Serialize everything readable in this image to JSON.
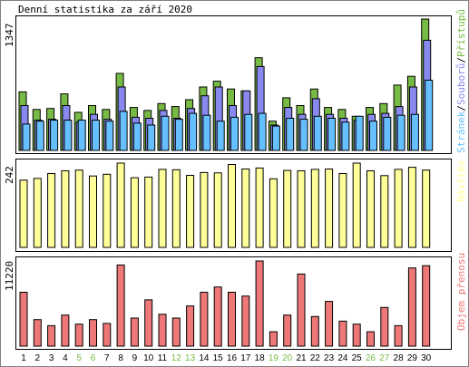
{
  "title": "Denní statistika za září 2020",
  "colors": {
    "frame": "#000000",
    "outer_frame": "#808080",
    "hits_bar": "#77bb44",
    "files_bar": "#8888ee",
    "pages_bar": "#66c0ff",
    "visits_bar": "#ffff99",
    "kbytes_bar": "#ee7777",
    "weekday_label": "#000000",
    "weekend_label": "#77bb44",
    "label_hits": "#77bb44",
    "label_files": "#8888ee",
    "label_pages": "#66c0ff",
    "label_visits": "#ffff99",
    "label_kbytes": "#ee7777",
    "separator": "#000000"
  },
  "chart_data": [
    {
      "type": "bar",
      "panel": "hits",
      "ymax_label": "1347",
      "ylim": [
        0,
        1347
      ],
      "legend": {
        "pages": "Stránek",
        "separator": "/",
        "files": "Souborů",
        "hits": "Přístupů"
      },
      "series": [
        {
          "name": "Přístupů",
          "values": [
            600,
            420,
            430,
            580,
            390,
            460,
            420,
            790,
            440,
            410,
            480,
            450,
            520,
            650,
            710,
            630,
            610,
            950,
            300,
            540,
            460,
            630,
            440,
            420,
            350,
            440,
            480,
            670,
            760,
            1347
          ]
        },
        {
          "name": "Souborů",
          "values": [
            460,
            310,
            320,
            460,
            290,
            370,
            320,
            650,
            340,
            330,
            410,
            330,
            430,
            560,
            650,
            460,
            610,
            860,
            260,
            440,
            370,
            530,
            370,
            330,
            310,
            370,
            380,
            450,
            650,
            1130
          ]
        },
        {
          "name": "Stránek",
          "values": [
            270,
            300,
            310,
            310,
            310,
            310,
            300,
            400,
            280,
            260,
            350,
            320,
            380,
            360,
            300,
            340,
            370,
            380,
            250,
            330,
            320,
            350,
            330,
            290,
            350,
            300,
            340,
            360,
            370,
            720
          ]
        }
      ]
    },
    {
      "type": "bar",
      "panel": "visits",
      "ymax_label": "242",
      "ylim": [
        0,
        242
      ],
      "label": "Návštěv",
      "series": [
        {
          "name": "Návštěv",
          "values": [
            193,
            198,
            212,
            220,
            222,
            205,
            210,
            242,
            200,
            202,
            224,
            223,
            207,
            215,
            214,
            238,
            225,
            228,
            197,
            221,
            220,
            224,
            225,
            212,
            242,
            220,
            206,
            224,
            230,
            222
          ]
        }
      ]
    },
    {
      "type": "bar",
      "panel": "kbytes",
      "ymax_label": "11220",
      "ylim": [
        0,
        11220
      ],
      "label": "Objem přenosu",
      "series": [
        {
          "name": "Objem přenosu",
          "values": [
            7100,
            3500,
            2700,
            4100,
            2900,
            3500,
            3000,
            10700,
            3700,
            6100,
            4200,
            3700,
            5300,
            7100,
            7800,
            7100,
            6600,
            11220,
            1900,
            4100,
            9500,
            3900,
            5900,
            3300,
            2900,
            1900,
            5100,
            2700,
            10300,
            10600
          ]
        }
      ]
    }
  ],
  "days": [
    "1",
    "2",
    "3",
    "4",
    "5",
    "6",
    "7",
    "8",
    "9",
    "10",
    "11",
    "12",
    "13",
    "14",
    "15",
    "16",
    "17",
    "18",
    "19",
    "20",
    "21",
    "22",
    "23",
    "24",
    "25",
    "26",
    "27",
    "28",
    "29",
    "30"
  ],
  "weekend_days": [
    5,
    6,
    12,
    13,
    19,
    20,
    26,
    27
  ]
}
